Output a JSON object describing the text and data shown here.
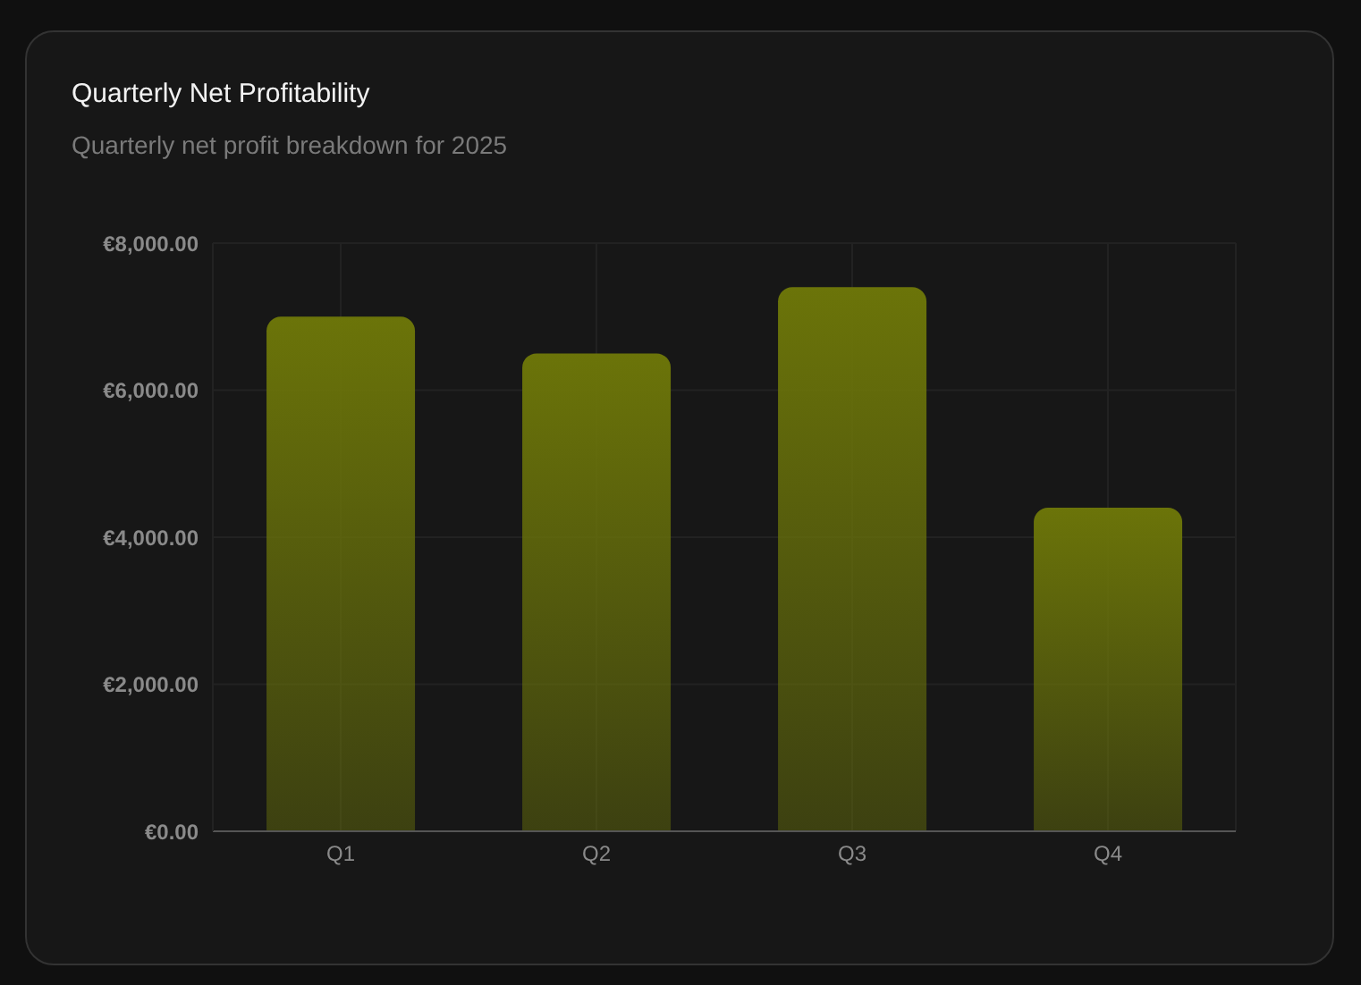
{
  "chart_data": {
    "type": "bar",
    "title": "Quarterly Net Profitability",
    "subtitle": "Quarterly net profit breakdown for 2025",
    "categories": [
      "Q1",
      "Q2",
      "Q3",
      "Q4"
    ],
    "values": [
      7000,
      6500,
      7400,
      4400
    ],
    "color": "#6b7409",
    "ylim": [
      0,
      8000
    ],
    "yticks": [
      {
        "value": 0,
        "label": "€0.00"
      },
      {
        "value": 2000,
        "label": "€2,000.00"
      },
      {
        "value": 4000,
        "label": "€4,000.00"
      },
      {
        "value": 6000,
        "label": "€6,000.00"
      },
      {
        "value": 8000,
        "label": "€8,000.00"
      }
    ],
    "grid": true
  }
}
